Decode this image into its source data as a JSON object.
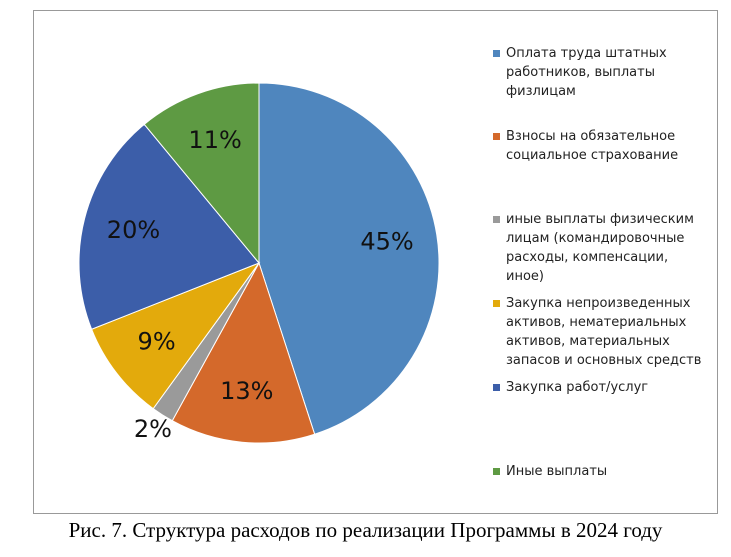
{
  "chart_data": {
    "type": "pie",
    "title": "Рис. 7. Структура расходов по реализации Программы в 2024 году",
    "categories": [
      "Оплата труда штатных работников,  выплаты физлицам",
      "Взносы на обязательное социальное страхование",
      "иные выплаты физическим лицам (командировочные расходы, компенсации, иное)",
      "Закупка непроизведенных активов, нематериальных активов, материальных запасов и основных средств",
      "Закупка работ/услуг",
      "Иные выплаты"
    ],
    "values": [
      45,
      13,
      2,
      9,
      20,
      11
    ],
    "value_labels": [
      "45%",
      "13%",
      "2%",
      "9%",
      "20%",
      "11%"
    ],
    "colors": [
      "#4f86be",
      "#d4692b",
      "#9a9a9a",
      "#e3aa0c",
      "#3c5ea9",
      "#5e9a43"
    ],
    "legend": "right"
  }
}
